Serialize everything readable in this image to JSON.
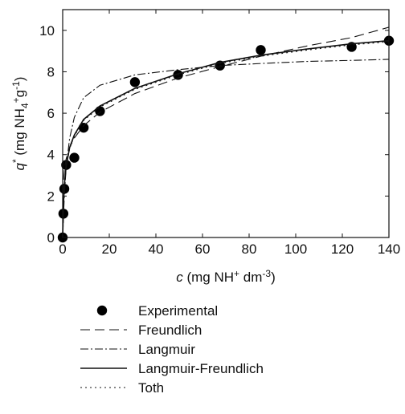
{
  "chart_data": {
    "type": "scatter",
    "xlabel": {
      "var": "c",
      "pre": " (mg NH",
      "sub": "",
      "sup": "+",
      "post": " dm",
      "post_sup": "-3",
      "close": ")"
    },
    "ylabel": {
      "var": "q",
      "var_sup": "*",
      "pre": " (mg NH",
      "sub": "4",
      "sup": "+",
      "post": "g",
      "post_sup": "-1",
      "close": ")"
    },
    "xlim": [
      0,
      140
    ],
    "ylim": [
      0,
      11
    ],
    "xticks": [
      0,
      20,
      40,
      60,
      80,
      100,
      120,
      140
    ],
    "yticks": [
      0,
      2,
      4,
      6,
      8,
      10
    ],
    "grid": false,
    "legend_placement": "below",
    "series": [
      {
        "name": "Experimental",
        "kind": "points",
        "x": [
          0,
          0.3,
          0.7,
          1.5,
          5,
          9,
          16,
          31,
          49.5,
          67.5,
          85,
          124,
          140
        ],
        "y": [
          0,
          1.15,
          2.35,
          3.5,
          3.85,
          5.3,
          6.1,
          7.5,
          7.85,
          8.3,
          9.05,
          9.2,
          9.5
        ]
      },
      {
        "name": "Freundlich",
        "kind": "line",
        "dash": "12,6",
        "x": [
          0,
          0.3,
          0.7,
          1.5,
          3,
          5,
          9,
          16,
          31,
          49.5,
          67.5,
          85,
          105,
          124,
          140
        ],
        "y": [
          0,
          2.7,
          3.25,
          3.8,
          4.35,
          4.8,
          5.4,
          6.05,
          6.95,
          7.7,
          8.25,
          8.75,
          9.25,
          9.65,
          10.15
        ]
      },
      {
        "name": "Langmuir",
        "kind": "line",
        "dash": "10,3,2,3",
        "x": [
          0,
          0.3,
          0.7,
          1.5,
          3,
          5,
          9,
          16,
          31,
          49.5,
          67.5,
          85,
          105,
          124,
          140
        ],
        "y": [
          0,
          0.9,
          2.0,
          3.4,
          4.8,
          5.8,
          6.75,
          7.35,
          7.85,
          8.1,
          8.3,
          8.4,
          8.5,
          8.55,
          8.6
        ]
      },
      {
        "name": "Langmuir-Freundlich",
        "kind": "line",
        "dash": "",
        "x": [
          0,
          0.3,
          0.7,
          1.5,
          3,
          5,
          9,
          16,
          31,
          49.5,
          67.5,
          85,
          105,
          124,
          140
        ],
        "y": [
          0,
          1.5,
          2.5,
          3.45,
          4.35,
          4.95,
          5.7,
          6.35,
          7.2,
          7.9,
          8.45,
          8.8,
          9.1,
          9.35,
          9.5
        ]
      },
      {
        "name": "Toth",
        "kind": "line",
        "dash": "2,4",
        "x": [
          0,
          0.3,
          0.7,
          1.5,
          3,
          5,
          9,
          16,
          31,
          49.5,
          67.5,
          85,
          105,
          124,
          140
        ],
        "y": [
          0,
          1.45,
          2.45,
          3.4,
          4.3,
          4.9,
          5.65,
          6.3,
          7.15,
          7.85,
          8.4,
          8.75,
          9.05,
          9.3,
          9.45
        ]
      }
    ]
  }
}
